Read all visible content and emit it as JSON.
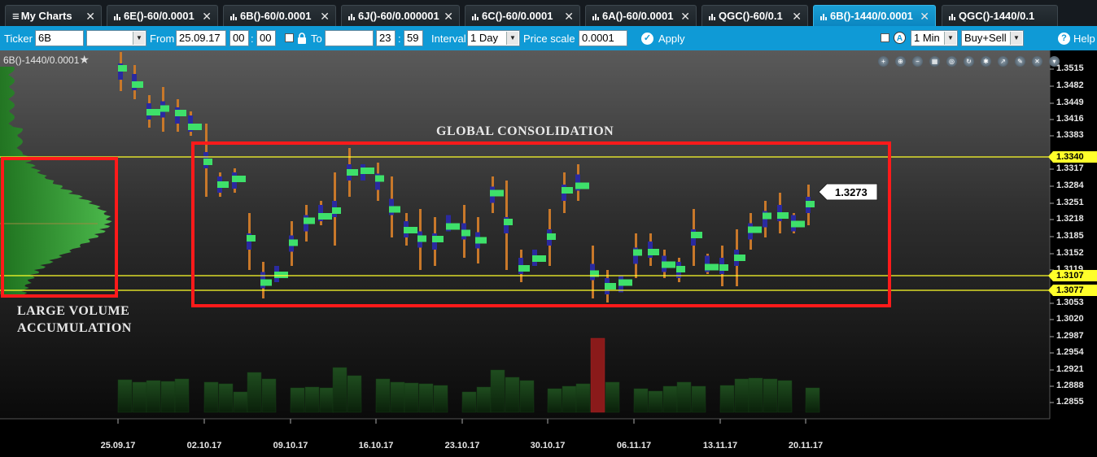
{
  "tabs": [
    {
      "label": "My Charts",
      "icon": "menu-icon",
      "closable": true,
      "active": false
    },
    {
      "label": "6E()-60/0.0001",
      "icon": "bar-chart-icon",
      "closable": true,
      "active": false
    },
    {
      "label": "6B()-60/0.0001",
      "icon": "bar-chart-icon",
      "closable": true,
      "active": false
    },
    {
      "label": "6J()-60/0.000001",
      "icon": "bar-chart-icon",
      "closable": true,
      "active": false
    },
    {
      "label": "6C()-60/0.0001",
      "icon": "bar-chart-icon",
      "closable": true,
      "active": false
    },
    {
      "label": "6A()-60/0.0001",
      "icon": "bar-chart-icon",
      "closable": true,
      "active": false
    },
    {
      "label": "QGC()-60/0.1",
      "icon": "bar-chart-icon",
      "closable": true,
      "active": false
    },
    {
      "label": "6B()-1440/0.0001",
      "icon": "bar-chart-icon",
      "closable": true,
      "active": true
    },
    {
      "label": "QGC()-1440/0.1",
      "icon": "bar-chart-icon",
      "closable": false,
      "active": false
    }
  ],
  "close_glyph": "✕",
  "toolbar": {
    "ticker_label": "Ticker",
    "ticker_value": "6B",
    "from_label": "From",
    "from_date": "25.09.17",
    "from_hour": "00",
    "from_min": "00",
    "to_label": "To",
    "to_date": "",
    "to_hour": "23",
    "to_min": "59",
    "interval_label": "Interval",
    "interval_value": "1 Day",
    "price_scale_label": "Price scale",
    "price_scale_value": "0.0001",
    "apply_label": "Apply",
    "timeframe_value": "1 Min",
    "side_value": "Buy+Sell",
    "help_label": "Help"
  },
  "chart": {
    "title": "6B()-1440/0.0001",
    "favorite_glyph": "★",
    "annotations": {
      "consolidation": "GLOBAL CONSOLIDATION",
      "volume_line1": "LARGE VOLUME",
      "volume_line2": "ACCUMULATION"
    },
    "last_price": "1.3273",
    "price_levels": [
      {
        "value": "1.3340",
        "color": "#ffff2a"
      },
      {
        "value": "1.3107",
        "color": "#ffff2a"
      },
      {
        "value": "1.3077",
        "color": "#ffff2a"
      }
    ],
    "box_color": "#ff1a1a",
    "y_ticks": [
      "1.3515",
      "1.3482",
      "1.3449",
      "1.3416",
      "1.3383",
      "1.3317",
      "1.3284",
      "1.3251",
      "1.3218",
      "1.3185",
      "1.3152",
      "1.3119",
      "1.3053",
      "1.3020",
      "1.2987",
      "1.2954",
      "1.2921",
      "1.2888",
      "1.2855"
    ],
    "x_ticks": [
      "25.09.17",
      "02.10.17",
      "09.10.17",
      "16.10.17",
      "23.10.17",
      "30.10.17",
      "06.11.17",
      "13.11.17",
      "20.11.17"
    ],
    "tool_icons": [
      "zoom-in-icon",
      "zoom-fit-icon",
      "zoom-out-icon",
      "cluster-icon",
      "target-icon",
      "refresh-icon",
      "settings-icon",
      "export-icon",
      "pencil-icon",
      "close-icon",
      "dropdown-icon"
    ]
  }
}
